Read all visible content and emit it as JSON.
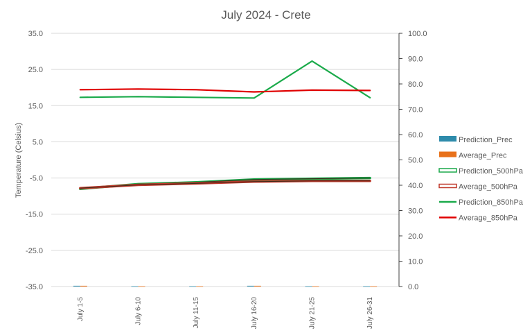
{
  "chart_data": {
    "type": "line",
    "title": "July 2024 - Crete",
    "ylabel": "Temperature (Celsius)",
    "xlabel": "",
    "categories": [
      "July 1-5",
      "July 6-10",
      "July 11-15",
      "July 16-20",
      "July 21-25",
      "July 26-31"
    ],
    "ylim": [
      -35,
      35
    ],
    "yticks": [
      "-35.0",
      "-25.0",
      "-15.0",
      "-5.0",
      "5.0",
      "15.0",
      "25.0",
      "35.0"
    ],
    "y2lim": [
      0,
      100
    ],
    "y2ticks": [
      "0.0",
      "10.0",
      "20.0",
      "30.0",
      "40.0",
      "50.0",
      "60.0",
      "70.0",
      "80.0",
      "90.0",
      "100.0"
    ],
    "grid": true,
    "legend_position": "right",
    "series": [
      {
        "name": "Prediction_Prec",
        "kind": "bar",
        "axis": "right",
        "color": "#2e8bab",
        "values": [
          0.3,
          0.1,
          0.1,
          0.3,
          0.1,
          0.1
        ]
      },
      {
        "name": "Average_Prec",
        "kind": "bar",
        "axis": "right",
        "color": "#e8711a",
        "values": [
          0.3,
          0.1,
          0.1,
          0.3,
          0.1,
          0.1
        ]
      },
      {
        "name": "Prediction_500hPa",
        "kind": "line",
        "style": "double",
        "axis": "left",
        "color": "#1aa84a",
        "values": [
          -8.0,
          -6.7,
          -6.2,
          -5.4,
          -5.2,
          -5.0
        ]
      },
      {
        "name": "Average_500hPa",
        "kind": "line",
        "style": "double",
        "axis": "left",
        "color": "#c0392b",
        "values": [
          -7.8,
          -6.9,
          -6.5,
          -6.0,
          -5.8,
          -5.8
        ]
      },
      {
        "name": "Prediction_850hPa",
        "kind": "line",
        "axis": "left",
        "color": "#1aaa4a",
        "values": [
          17.3,
          17.5,
          17.3,
          17.1,
          27.3,
          17.2
        ]
      },
      {
        "name": "Average_850hPa",
        "kind": "line",
        "axis": "left",
        "color": "#e00000",
        "values": [
          19.4,
          19.6,
          19.4,
          18.8,
          19.3,
          19.2
        ]
      }
    ]
  }
}
